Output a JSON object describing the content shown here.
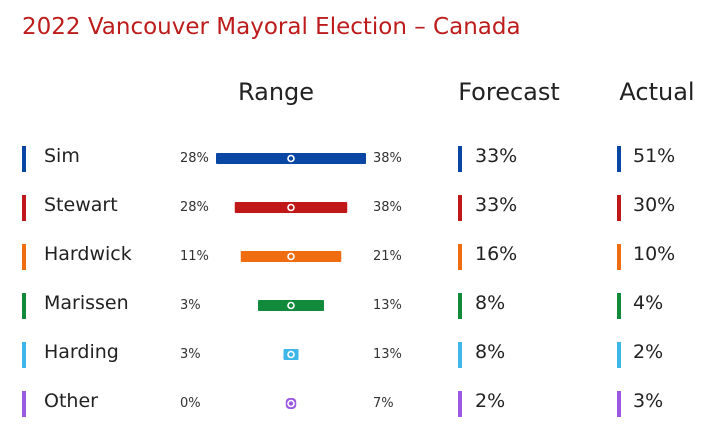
{
  "title": "2022 Vancouver Mayoral Election – Canada",
  "headers": {
    "range": "Range",
    "forecast": "Forecast",
    "actual": "Actual"
  },
  "chart_data": {
    "type": "table",
    "title": "2022 Vancouver Mayoral Election – Canada",
    "columns": [
      "Range",
      "Forecast",
      "Actual"
    ],
    "rows": [
      {
        "name": "Sim",
        "color": "#0a47a5",
        "range_low": 28,
        "range_high": 38,
        "range_low_label": "28%",
        "range_high_label": "38%",
        "forecast": 33,
        "forecast_label": "33%",
        "actual": 51,
        "actual_label": "51%"
      },
      {
        "name": "Stewart",
        "color": "#c01818",
        "range_low": 28,
        "range_high": 38,
        "range_low_label": "28%",
        "range_high_label": "38%",
        "forecast": 33,
        "forecast_label": "33%",
        "actual": 30,
        "actual_label": "30%"
      },
      {
        "name": "Hardwick",
        "color": "#ef6c10",
        "range_low": 11,
        "range_high": 21,
        "range_low_label": "11%",
        "range_high_label": "21%",
        "forecast": 16,
        "forecast_label": "16%",
        "actual": 10,
        "actual_label": "10%"
      },
      {
        "name": "Marissen",
        "color": "#128a3c",
        "range_low": 3,
        "range_high": 13,
        "range_low_label": "3%",
        "range_high_label": "13%",
        "forecast": 8,
        "forecast_label": "8%",
        "actual": 4,
        "actual_label": "4%"
      },
      {
        "name": "Harding",
        "color": "#3fb6ea",
        "range_low": 3,
        "range_high": 13,
        "range_low_label": "3%",
        "range_high_label": "13%",
        "forecast": 8,
        "forecast_label": "8%",
        "actual": 2,
        "actual_label": "2%"
      },
      {
        "name": "Other",
        "color": "#9b58e0",
        "range_low": 0,
        "range_high": 7,
        "range_low_label": "0%",
        "range_high_label": "7%",
        "forecast": 2,
        "forecast_label": "2%",
        "actual": 3,
        "actual_label": "3%"
      }
    ]
  }
}
